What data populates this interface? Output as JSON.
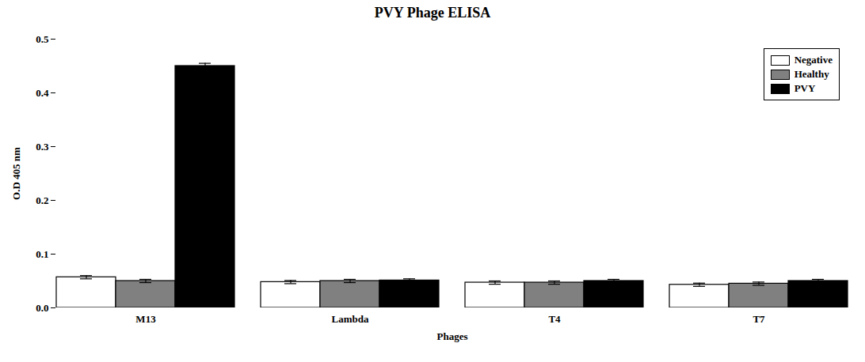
{
  "chart_data": {
    "type": "bar",
    "title": "PVY Phage ELISA",
    "xlabel": "Phages",
    "ylabel": "O.D 405 nm",
    "categories": [
      "M13",
      "Lambda",
      "T4",
      "T7"
    ],
    "series": [
      {
        "name": "Negative",
        "color": "#ffffff",
        "values": [
          0.057,
          0.048,
          0.047,
          0.043
        ],
        "errors": [
          0.003,
          0.003,
          0.003,
          0.003
        ]
      },
      {
        "name": "Healthy",
        "color": "#808080",
        "values": [
          0.05,
          0.05,
          0.047,
          0.045
        ],
        "errors": [
          0.003,
          0.003,
          0.003,
          0.003
        ]
      },
      {
        "name": "PVY",
        "color": "#000000",
        "values": [
          0.45,
          0.051,
          0.05,
          0.05
        ],
        "errors": [
          0.005,
          0.003,
          0.003,
          0.003
        ]
      }
    ],
    "ylim": [
      0.0,
      0.5
    ],
    "yticks": [
      {
        "value": 0.0,
        "label": "0.0"
      },
      0.1,
      0.2,
      0.3,
      0.4,
      0.5
    ],
    "legend": "upper right",
    "grid": false
  }
}
